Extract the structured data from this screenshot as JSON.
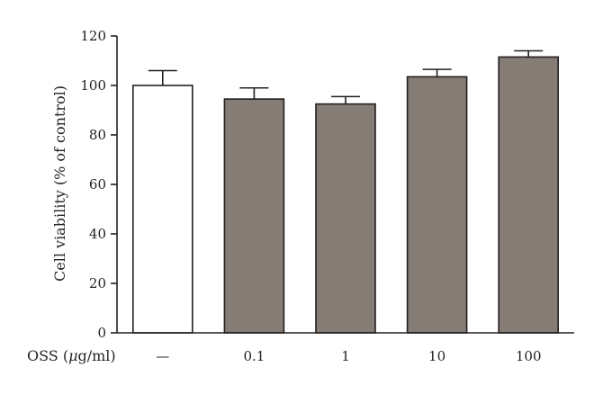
{
  "chart_data": {
    "type": "bar",
    "title": "",
    "ylabel": "Cell viability (% of control)",
    "x_row_label_prefix": "OSS (",
    "x_row_label_unit_symbol": "μ",
    "x_row_label_suffix": "g/ml)",
    "categories": [
      "—",
      "0.1",
      "1",
      "10",
      "100"
    ],
    "values": [
      100,
      94.5,
      92.5,
      103.5,
      111.5
    ],
    "errors": [
      6,
      4.5,
      3,
      3,
      2.5
    ],
    "ylim": [
      0,
      120
    ],
    "yticks": [
      "0",
      "20",
      "40",
      "60",
      "80",
      "100",
      "120"
    ],
    "grid": false,
    "legend": "none",
    "bar_colors": [
      "#ffffff",
      "#857c76",
      "#857c76",
      "#857c76",
      "#857c76"
    ],
    "edge_color": "#231f20"
  }
}
